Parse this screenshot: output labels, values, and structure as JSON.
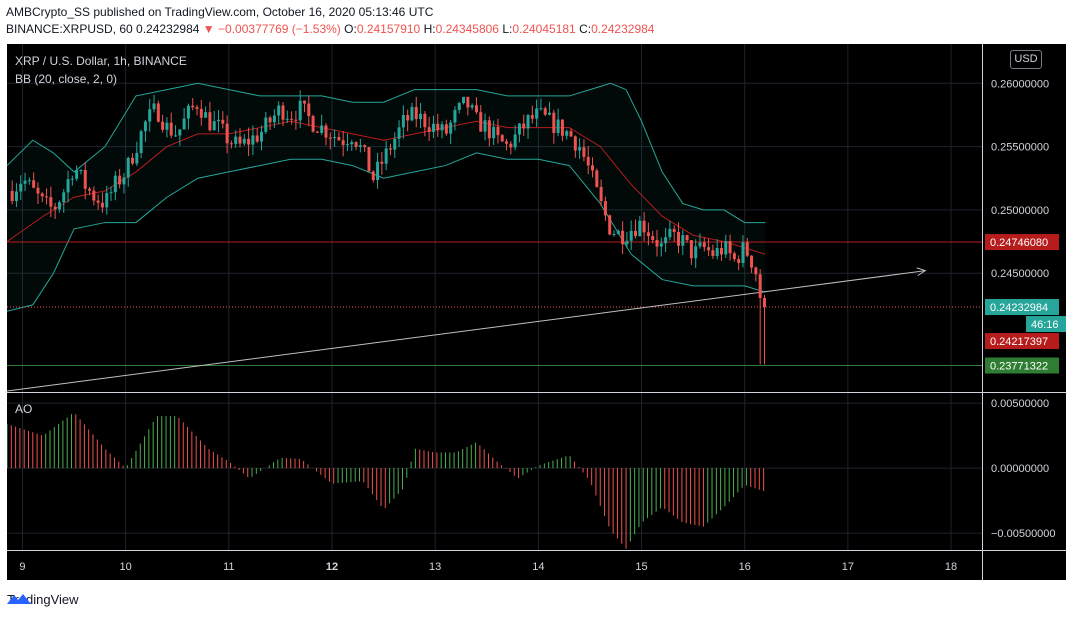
{
  "header": {
    "publisher_line": "AMBCrypto_SS published on TradingView.com, October 16, 2020 05:13:46 UTC",
    "symbol": "BINANCE:XRPUSD, 60",
    "last": "0.24232984",
    "change": "−0.00377769 (−1.53%)",
    "o_label": "O:",
    "o_value": "0.24157910",
    "h_label": "H:",
    "h_value": "0.24345806",
    "l_label": "L:",
    "l_value": "0.24045181",
    "c_label": "C:",
    "c_value": "0.24232984"
  },
  "legend": {
    "title": "XRP / U.S. Dollar, 1h, BINANCE",
    "bb": "BB (20, close, 2, 0)",
    "ao": "AO"
  },
  "currency_button": "USD",
  "footer": {
    "brand": "TradingView"
  },
  "colors": {
    "up": "#26a69a",
    "down": "#ef5350",
    "bb": "#26a69a",
    "basis": "#b71c1c",
    "ao_up": "#4caf50",
    "ao_down": "#ef5350",
    "grid": "#1e222d",
    "bg": "#000000"
  },
  "chart_data": {
    "type": "candlestick",
    "x_ticks": [
      {
        "label": "9",
        "day": 9,
        "bold": false
      },
      {
        "label": "10",
        "day": 10,
        "bold": false
      },
      {
        "label": "11",
        "day": 11,
        "bold": false
      },
      {
        "label": "12",
        "day": 12,
        "bold": true
      },
      {
        "label": "13",
        "day": 13,
        "bold": false
      },
      {
        "label": "14",
        "day": 14,
        "bold": false
      },
      {
        "label": "15",
        "day": 15,
        "bold": false
      },
      {
        "label": "16",
        "day": 16,
        "bold": false
      },
      {
        "label": "17",
        "day": 17,
        "bold": false
      },
      {
        "label": "18",
        "day": 18,
        "bold": false
      }
    ],
    "xlim_days": [
      8.85,
      18.3
    ],
    "price_axis": {
      "ylim": [
        0.2357,
        0.2631
      ],
      "ticks": [
        "0.26000000",
        "0.25500000",
        "0.25000000",
        "0.24500000"
      ],
      "tick_values": [
        0.26,
        0.255,
        0.25,
        0.245
      ]
    },
    "ao_axis": {
      "ylim": [
        -0.0063,
        0.0057
      ],
      "ticks": [
        "0.00500000",
        "0.00000000",
        "−0.00500000"
      ],
      "tick_values": [
        0.005,
        0.0,
        -0.005
      ]
    },
    "price_labels": [
      {
        "text": "0.24746080",
        "value": 0.2474608,
        "color": "#b71c1c"
      },
      {
        "text": "0.24232984",
        "value": 0.24232984,
        "color": "#26a69a"
      },
      {
        "text": "46:16",
        "value": 0.24232984,
        "color": "#26a69a",
        "sub": true
      },
      {
        "text": "0.24217397",
        "value": 0.24217397,
        "color": "#b71c1c"
      },
      {
        "text": "0.23771322",
        "value": 0.23771322,
        "color": "#2e7d32"
      }
    ],
    "hlines": [
      {
        "value": 0.2474608,
        "color": "#b71c1c",
        "style": "solid"
      },
      {
        "value": 0.24232984,
        "color": "#ef5350",
        "style": "dotted"
      },
      {
        "value": 0.23771322,
        "color": "#2e7d32",
        "style": "solid"
      }
    ],
    "trend_arrow": {
      "from": [
        8.85,
        0.2357
      ],
      "to": [
        17.75,
        0.2452
      ]
    },
    "price_path": [
      [
        8.9,
        0.2515
      ],
      [
        9.0,
        0.2525
      ],
      [
        9.1,
        0.2515
      ],
      [
        9.2,
        0.2505
      ],
      [
        9.3,
        0.25
      ],
      [
        9.4,
        0.2515
      ],
      [
        9.5,
        0.2535
      ],
      [
        9.6,
        0.252
      ],
      [
        9.7,
        0.251
      ],
      [
        9.8,
        0.2505
      ],
      [
        9.9,
        0.252
      ],
      [
        10.0,
        0.253
      ],
      [
        10.1,
        0.255
      ],
      [
        10.2,
        0.257
      ],
      [
        10.3,
        0.258
      ],
      [
        10.4,
        0.2565
      ],
      [
        10.5,
        0.256
      ],
      [
        10.6,
        0.2575
      ],
      [
        10.7,
        0.2585
      ],
      [
        10.8,
        0.257
      ],
      [
        10.9,
        0.2565
      ],
      [
        11.0,
        0.2555
      ],
      [
        11.1,
        0.255
      ],
      [
        11.2,
        0.2555
      ],
      [
        11.3,
        0.256
      ],
      [
        11.4,
        0.257
      ],
      [
        11.5,
        0.258
      ],
      [
        11.6,
        0.2575
      ],
      [
        11.7,
        0.258
      ],
      [
        11.8,
        0.257
      ],
      [
        11.9,
        0.2565
      ],
      [
        12.0,
        0.256
      ],
      [
        12.1,
        0.2555
      ],
      [
        12.2,
        0.256
      ],
      [
        12.3,
        0.2545
      ],
      [
        12.4,
        0.2525
      ],
      [
        12.5,
        0.254
      ],
      [
        12.6,
        0.2555
      ],
      [
        12.7,
        0.257
      ],
      [
        12.8,
        0.2575
      ],
      [
        12.9,
        0.257
      ],
      [
        13.0,
        0.2565
      ],
      [
        13.1,
        0.256
      ],
      [
        13.2,
        0.2575
      ],
      [
        13.3,
        0.2585
      ],
      [
        13.4,
        0.257
      ],
      [
        13.5,
        0.2565
      ],
      [
        13.6,
        0.2555
      ],
      [
        13.7,
        0.255
      ],
      [
        13.8,
        0.256
      ],
      [
        13.9,
        0.257
      ],
      [
        14.0,
        0.2575
      ],
      [
        14.1,
        0.257
      ],
      [
        14.2,
        0.2565
      ],
      [
        14.3,
        0.256
      ],
      [
        14.4,
        0.255
      ],
      [
        14.5,
        0.253
      ],
      [
        14.6,
        0.2505
      ],
      [
        14.7,
        0.2485
      ],
      [
        14.8,
        0.248
      ],
      [
        14.9,
        0.2485
      ],
      [
        15.0,
        0.249
      ],
      [
        15.1,
        0.248
      ],
      [
        15.2,
        0.247
      ],
      [
        15.3,
        0.248
      ],
      [
        15.4,
        0.2475
      ],
      [
        15.5,
        0.2465
      ],
      [
        15.6,
        0.247
      ],
      [
        15.7,
        0.2465
      ],
      [
        15.8,
        0.247
      ],
      [
        15.9,
        0.246
      ],
      [
        16.0,
        0.247
      ],
      [
        16.1,
        0.2455
      ],
      [
        16.15,
        0.2432
      ],
      [
        16.2,
        0.2423
      ]
    ],
    "bb_upper": [
      [
        8.85,
        0.2535
      ],
      [
        9.1,
        0.2555
      ],
      [
        9.3,
        0.2545
      ],
      [
        9.5,
        0.253
      ],
      [
        9.8,
        0.255
      ],
      [
        10.1,
        0.259
      ],
      [
        10.4,
        0.2595
      ],
      [
        10.7,
        0.26
      ],
      [
        11.0,
        0.2595
      ],
      [
        11.3,
        0.259
      ],
      [
        11.6,
        0.259
      ],
      [
        11.9,
        0.259
      ],
      [
        12.2,
        0.2585
      ],
      [
        12.5,
        0.2585
      ],
      [
        12.8,
        0.2595
      ],
      [
        13.1,
        0.2595
      ],
      [
        13.4,
        0.2595
      ],
      [
        13.7,
        0.259
      ],
      [
        14.0,
        0.259
      ],
      [
        14.3,
        0.259
      ],
      [
        14.5,
        0.2595
      ],
      [
        14.7,
        0.26
      ],
      [
        14.85,
        0.2595
      ],
      [
        15.0,
        0.257
      ],
      [
        15.2,
        0.253
      ],
      [
        15.4,
        0.2505
      ],
      [
        15.6,
        0.25
      ],
      [
        15.8,
        0.25
      ],
      [
        16.0,
        0.249
      ],
      [
        16.2,
        0.249
      ]
    ],
    "bb_basis": [
      [
        8.85,
        0.2475
      ],
      [
        9.2,
        0.2495
      ],
      [
        9.5,
        0.251
      ],
      [
        9.8,
        0.2515
      ],
      [
        10.1,
        0.253
      ],
      [
        10.4,
        0.255
      ],
      [
        10.7,
        0.256
      ],
      [
        11.0,
        0.256
      ],
      [
        11.3,
        0.2565
      ],
      [
        11.6,
        0.257
      ],
      [
        11.9,
        0.2565
      ],
      [
        12.2,
        0.256
      ],
      [
        12.5,
        0.2555
      ],
      [
        12.8,
        0.256
      ],
      [
        13.1,
        0.2565
      ],
      [
        13.4,
        0.257
      ],
      [
        13.7,
        0.2565
      ],
      [
        14.0,
        0.2565
      ],
      [
        14.3,
        0.2565
      ],
      [
        14.6,
        0.255
      ],
      [
        14.9,
        0.252
      ],
      [
        15.2,
        0.2495
      ],
      [
        15.5,
        0.248
      ],
      [
        15.8,
        0.2475
      ],
      [
        16.0,
        0.247
      ],
      [
        16.2,
        0.2465
      ]
    ],
    "bb_lower": [
      [
        8.85,
        0.242
      ],
      [
        9.1,
        0.2425
      ],
      [
        9.3,
        0.245
      ],
      [
        9.5,
        0.2485
      ],
      [
        9.8,
        0.249
      ],
      [
        10.1,
        0.249
      ],
      [
        10.4,
        0.251
      ],
      [
        10.7,
        0.2525
      ],
      [
        11.0,
        0.253
      ],
      [
        11.3,
        0.2535
      ],
      [
        11.6,
        0.254
      ],
      [
        11.9,
        0.254
      ],
      [
        12.2,
        0.2535
      ],
      [
        12.5,
        0.2525
      ],
      [
        12.8,
        0.253
      ],
      [
        13.1,
        0.2535
      ],
      [
        13.4,
        0.2545
      ],
      [
        13.7,
        0.254
      ],
      [
        14.0,
        0.254
      ],
      [
        14.3,
        0.2535
      ],
      [
        14.6,
        0.2505
      ],
      [
        14.9,
        0.2465
      ],
      [
        15.2,
        0.2445
      ],
      [
        15.5,
        0.244
      ],
      [
        15.8,
        0.244
      ],
      [
        16.0,
        0.244
      ],
      [
        16.2,
        0.2435
      ]
    ],
    "ao_path": [
      [
        8.85,
        0.0034
      ],
      [
        9.2,
        0.0025
      ],
      [
        9.5,
        0.0043
      ],
      [
        9.8,
        0.0015
      ],
      [
        10.0,
        0.0
      ],
      [
        10.3,
        0.004
      ],
      [
        10.5,
        0.004
      ],
      [
        10.8,
        0.0015
      ],
      [
        11.0,
        0.0005
      ],
      [
        11.2,
        -0.0008
      ],
      [
        11.5,
        0.0008
      ],
      [
        11.7,
        0.0007
      ],
      [
        12.0,
        -0.0012
      ],
      [
        12.3,
        -0.001
      ],
      [
        12.5,
        -0.0032
      ],
      [
        12.7,
        -0.0015
      ],
      [
        12.8,
        0.0015
      ],
      [
        13.0,
        0.0012
      ],
      [
        13.2,
        0.0012
      ],
      [
        13.4,
        0.002
      ],
      [
        13.6,
        0.0005
      ],
      [
        13.8,
        -0.0008
      ],
      [
        14.0,
        0.0002
      ],
      [
        14.3,
        0.001
      ],
      [
        14.5,
        -0.001
      ],
      [
        14.7,
        -0.0048
      ],
      [
        14.85,
        -0.0062
      ],
      [
        15.0,
        -0.0042
      ],
      [
        15.2,
        -0.003
      ],
      [
        15.4,
        -0.0042
      ],
      [
        15.6,
        -0.0045
      ],
      [
        15.8,
        -0.003
      ],
      [
        16.0,
        -0.0013
      ],
      [
        16.2,
        -0.0018
      ]
    ]
  }
}
